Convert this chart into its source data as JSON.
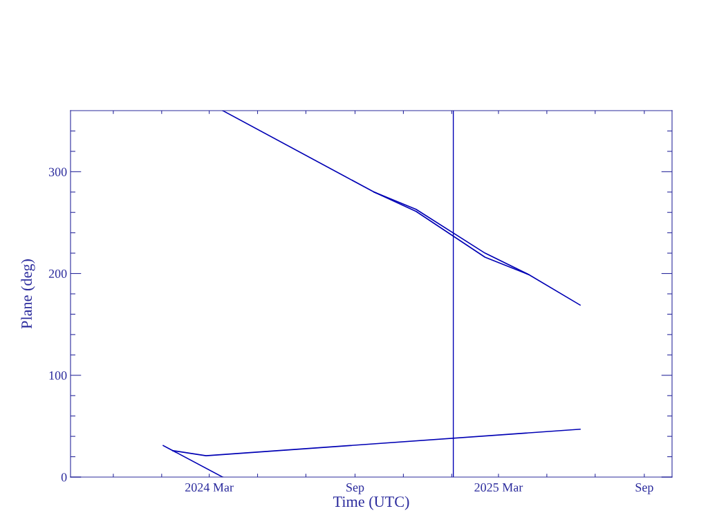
{
  "chart_data": {
    "type": "line",
    "xlabel": "Time (UTC)",
    "ylabel": "Plane (deg)",
    "xlim": [
      "2023-09-08",
      "2025-10-06"
    ],
    "xticks": [
      {
        "value": "2023-11-01",
        "label": null
      },
      {
        "value": "2024-01-01",
        "label": null
      },
      {
        "value": "2024-03-01",
        "label": "2024 Mar"
      },
      {
        "value": "2024-05-01",
        "label": null
      },
      {
        "value": "2024-07-01",
        "label": null
      },
      {
        "value": "2024-09-01",
        "label": "Sep"
      },
      {
        "value": "2024-11-01",
        "label": null
      },
      {
        "value": "2025-01-01",
        "label": null
      },
      {
        "value": "2025-03-01",
        "label": "2025 Mar"
      },
      {
        "value": "2025-05-01",
        "label": null
      },
      {
        "value": "2025-07-01",
        "label": null
      },
      {
        "value": "2025-09-01",
        "label": "Sep"
      }
    ],
    "ylim": [
      0,
      360
    ],
    "yticks": [
      0,
      {
        "value": 20,
        "label": null
      },
      {
        "value": 40,
        "label": null
      },
      {
        "value": 60,
        "label": null
      },
      {
        "value": 80,
        "label": null
      },
      100,
      {
        "value": 120,
        "label": null
      },
      {
        "value": 140,
        "label": null
      },
      {
        "value": 160,
        "label": null
      },
      {
        "value": 180,
        "label": null
      },
      200,
      {
        "value": 220,
        "label": null
      },
      {
        "value": 240,
        "label": null
      },
      {
        "value": 260,
        "label": null
      },
      {
        "value": 280,
        "label": null
      },
      300,
      {
        "value": 320,
        "label": null
      },
      {
        "value": 340,
        "label": null
      }
    ],
    "grid": false,
    "legend": false,
    "ref_lines": [
      {
        "axis": "x",
        "value": "2025-01-03",
        "label": null,
        "color": "#0000b4"
      }
    ],
    "series": [
      {
        "color": "#0000b4",
        "x": [
          "2024-01-03",
          "2024-01-15",
          "2024-03-18"
        ],
        "values": [
          31,
          26,
          0
        ]
      },
      {
        "color": "#0000b4",
        "x": [
          "2024-03-18",
          "2024-09-25",
          "2024-11-17",
          "2025-02-12",
          "2025-04-08",
          "2025-06-12"
        ],
        "values": [
          360,
          280,
          261,
          216,
          199,
          169
        ]
      },
      {
        "color": "#0000b4",
        "x": [
          "2024-01-15",
          "2024-02-26",
          "2025-06-12"
        ],
        "values": [
          26,
          21,
          47
        ]
      },
      {
        "color": "#0000b4",
        "x": [
          "2024-09-25",
          "2024-11-17",
          "2025-02-12",
          "2025-04-08"
        ],
        "values": [
          280,
          263,
          220,
          199
        ]
      }
    ]
  }
}
